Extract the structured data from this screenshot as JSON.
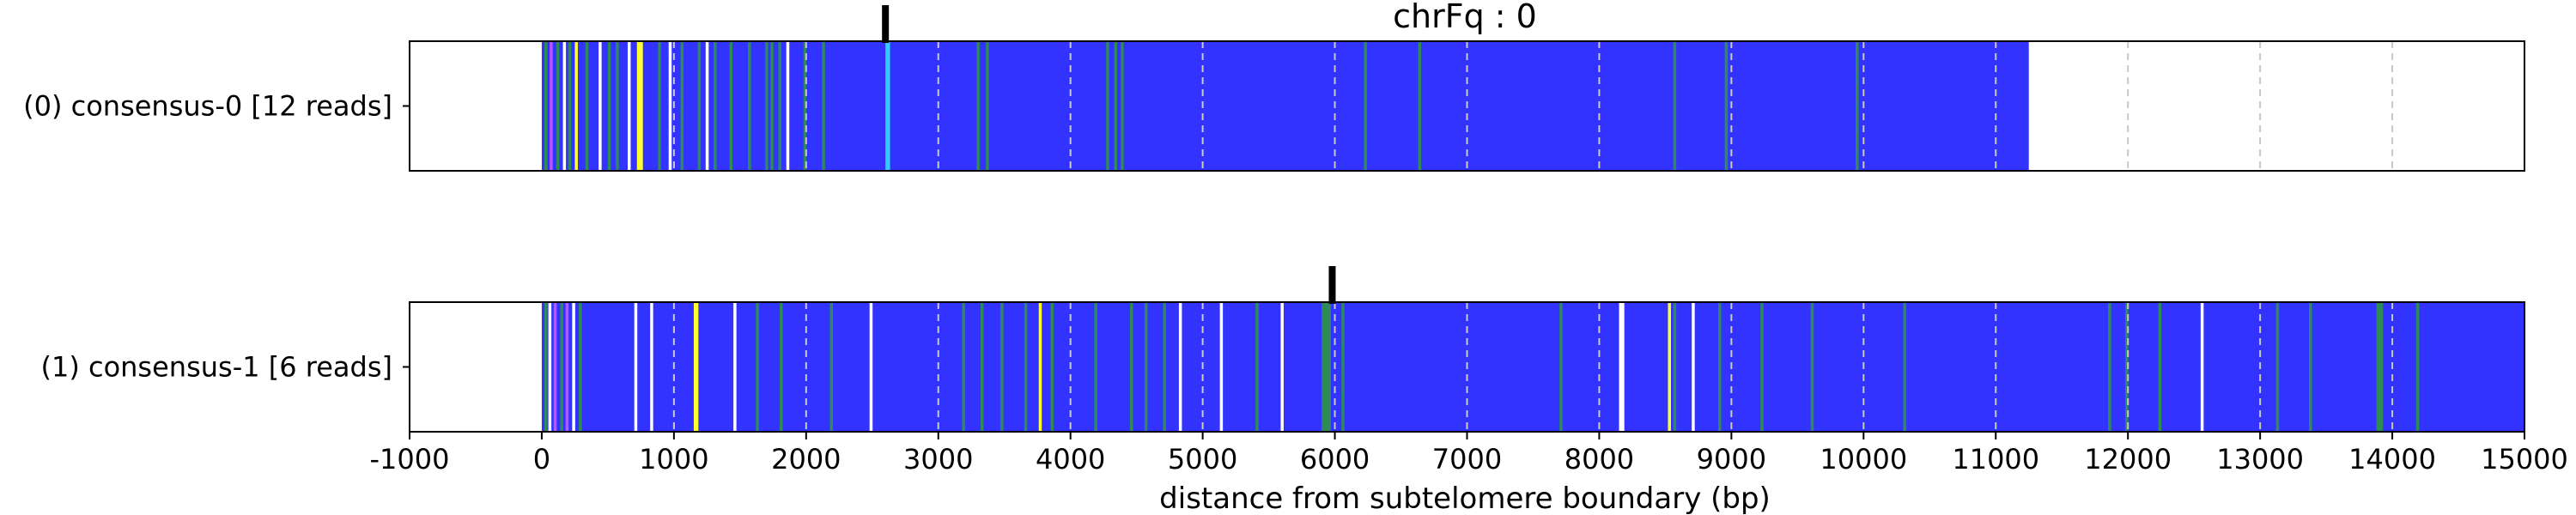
{
  "chart_data": {
    "type": "heatmap",
    "title": "chrFq : 0",
    "xlabel": "distance from subtelomere boundary (bp)",
    "xlim": [
      -1000,
      15000
    ],
    "xticks": [
      -1000,
      0,
      1000,
      2000,
      3000,
      4000,
      5000,
      6000,
      7000,
      8000,
      9000,
      10000,
      11000,
      12000,
      13000,
      14000,
      15000
    ],
    "grid_x": [
      1000,
      2000,
      3000,
      4000,
      5000,
      6000,
      7000,
      8000,
      9000,
      10000,
      11000,
      12000,
      13000,
      14000
    ],
    "colors": {
      "base": "#3333ff",
      "green": "#2e8b57",
      "yellow": "#ffff33",
      "cyan": "#33ccff",
      "magenta": "#bb55ff",
      "white": "#ffffff",
      "marker": "#000000",
      "grid": "#c8c8c8"
    },
    "rows": [
      {
        "label": "(0) consensus-0 [12 reads]",
        "start": 0,
        "end": 11250,
        "marker": 2600,
        "stripes": [
          {
            "x": 20,
            "c": "green"
          },
          {
            "x": 60,
            "c": "magenta"
          },
          {
            "x": 110,
            "c": "green"
          },
          {
            "x": 160,
            "c": "white"
          },
          {
            "x": 200,
            "c": "green"
          },
          {
            "x": 250,
            "c": "yellow"
          },
          {
            "x": 330,
            "c": "green"
          },
          {
            "x": 430,
            "c": "white"
          },
          {
            "x": 500,
            "c": "green"
          },
          {
            "x": 560,
            "c": "green"
          },
          {
            "x": 650,
            "c": "white"
          },
          {
            "x": 720,
            "c": "yellow",
            "w": 45
          },
          {
            "x": 880,
            "c": "green"
          },
          {
            "x": 960,
            "c": "white"
          },
          {
            "x": 1050,
            "c": "green"
          },
          {
            "x": 1180,
            "c": "green"
          },
          {
            "x": 1240,
            "c": "white"
          },
          {
            "x": 1300,
            "c": "green"
          },
          {
            "x": 1420,
            "c": "green"
          },
          {
            "x": 1560,
            "c": "green"
          },
          {
            "x": 1690,
            "c": "green"
          },
          {
            "x": 1730,
            "c": "green"
          },
          {
            "x": 1790,
            "c": "green"
          },
          {
            "x": 1850,
            "c": "white"
          },
          {
            "x": 1980,
            "c": "green"
          },
          {
            "x": 2120,
            "c": "green"
          },
          {
            "x": 2600,
            "c": "cyan",
            "w": 35
          },
          {
            "x": 3290,
            "c": "green"
          },
          {
            "x": 3360,
            "c": "green"
          },
          {
            "x": 4270,
            "c": "green"
          },
          {
            "x": 4330,
            "c": "green"
          },
          {
            "x": 4380,
            "c": "green"
          },
          {
            "x": 6220,
            "c": "green"
          },
          {
            "x": 6630,
            "c": "green"
          },
          {
            "x": 8560,
            "c": "green"
          },
          {
            "x": 8950,
            "c": "green"
          },
          {
            "x": 9940,
            "c": "green"
          }
        ]
      },
      {
        "label": "(1) consensus-1 [6 reads]",
        "start": 0,
        "end": 15000,
        "marker": 5980,
        "stripes": [
          {
            "x": 20,
            "c": "green"
          },
          {
            "x": 50,
            "c": "white"
          },
          {
            "x": 90,
            "c": "magenta"
          },
          {
            "x": 140,
            "c": "green"
          },
          {
            "x": 180,
            "c": "magenta"
          },
          {
            "x": 230,
            "c": "white"
          },
          {
            "x": 280,
            "c": "green"
          },
          {
            "x": 700,
            "c": "white"
          },
          {
            "x": 820,
            "c": "white"
          },
          {
            "x": 1150,
            "c": "yellow",
            "w": 35
          },
          {
            "x": 1450,
            "c": "white"
          },
          {
            "x": 1620,
            "c": "green"
          },
          {
            "x": 1800,
            "c": "green"
          },
          {
            "x": 2180,
            "c": "green"
          },
          {
            "x": 2480,
            "c": "white"
          },
          {
            "x": 3180,
            "c": "green"
          },
          {
            "x": 3320,
            "c": "green"
          },
          {
            "x": 3470,
            "c": "green"
          },
          {
            "x": 3650,
            "c": "green"
          },
          {
            "x": 3760,
            "c": "yellow"
          },
          {
            "x": 3850,
            "c": "green"
          },
          {
            "x": 4180,
            "c": "green"
          },
          {
            "x": 4450,
            "c": "green"
          },
          {
            "x": 4560,
            "c": "green"
          },
          {
            "x": 4700,
            "c": "green"
          },
          {
            "x": 4820,
            "c": "white"
          },
          {
            "x": 5130,
            "c": "white"
          },
          {
            "x": 5400,
            "c": "green"
          },
          {
            "x": 5590,
            "c": "white"
          },
          {
            "x": 5900,
            "c": "green",
            "w": 70
          },
          {
            "x": 6050,
            "c": "green"
          },
          {
            "x": 7700,
            "c": "green"
          },
          {
            "x": 8150,
            "c": "white",
            "w": 40
          },
          {
            "x": 8520,
            "c": "yellow"
          },
          {
            "x": 8560,
            "c": "green"
          },
          {
            "x": 8700,
            "c": "white"
          },
          {
            "x": 8900,
            "c": "green"
          },
          {
            "x": 9220,
            "c": "green"
          },
          {
            "x": 9600,
            "c": "green"
          },
          {
            "x": 10300,
            "c": "green"
          },
          {
            "x": 11850,
            "c": "green"
          },
          {
            "x": 11980,
            "c": "green"
          },
          {
            "x": 12230,
            "c": "green"
          },
          {
            "x": 12550,
            "c": "white"
          },
          {
            "x": 13120,
            "c": "green"
          },
          {
            "x": 13370,
            "c": "green"
          },
          {
            "x": 13880,
            "c": "green",
            "w": 50
          },
          {
            "x": 14180,
            "c": "green"
          }
        ]
      }
    ]
  }
}
